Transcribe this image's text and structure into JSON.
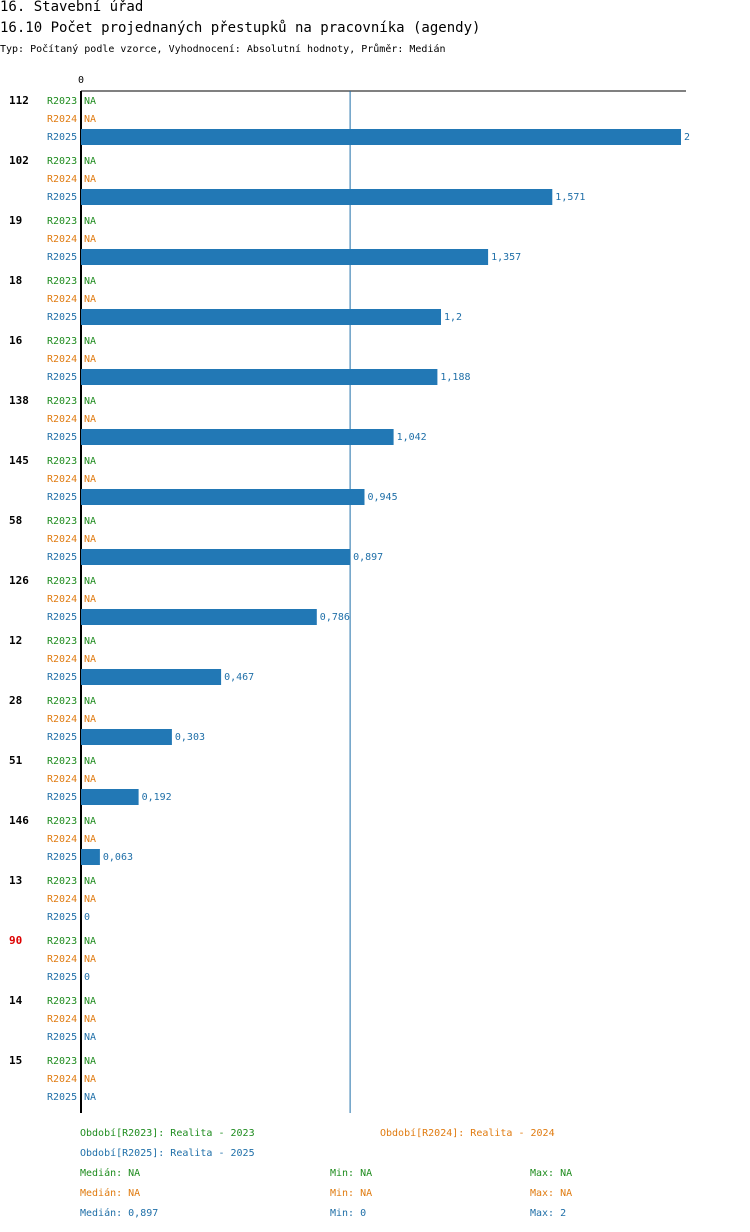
{
  "header": {
    "title": "16. Stavební úřad",
    "subtitle": "16.10 Počet projednaných přestupků na pracovníka (agendy)",
    "info": "Typ: Počítaný podle vzorce, Vyhodnocení: Absolutní hodnoty, Průměr: Medián"
  },
  "colors": {
    "r2023": "#1e8c1e",
    "r2024": "#e07b10",
    "r2025": "#1f6fa8",
    "bar": "#2278b5",
    "highlight": "#dd0000",
    "axis": "#000000"
  },
  "chart_data": {
    "type": "bar",
    "orientation": "horizontal",
    "axis_zero_label": "0",
    "xlim": [
      0,
      2
    ],
    "reference_line": {
      "name": "Medián R2025",
      "value": 0.897
    },
    "period_labels": [
      "R2023",
      "R2024",
      "R2025"
    ],
    "missing_label": "NA",
    "highlight_category": "90",
    "categories": [
      "112",
      "102",
      "19",
      "18",
      "16",
      "138",
      "145",
      "58",
      "126",
      "12",
      "28",
      "51",
      "146",
      "13",
      "90",
      "14",
      "15"
    ],
    "series": [
      {
        "name": "R2023",
        "values": [
          null,
          null,
          null,
          null,
          null,
          null,
          null,
          null,
          null,
          null,
          null,
          null,
          null,
          null,
          null,
          null,
          null
        ]
      },
      {
        "name": "R2024",
        "values": [
          null,
          null,
          null,
          null,
          null,
          null,
          null,
          null,
          null,
          null,
          null,
          null,
          null,
          null,
          null,
          null,
          null
        ]
      },
      {
        "name": "R2025",
        "values": [
          2,
          1.571,
          1.357,
          1.2,
          1.188,
          1.042,
          0.945,
          0.897,
          0.786,
          0.467,
          0.303,
          0.192,
          0.063,
          0,
          0,
          null,
          null
        ]
      }
    ],
    "value_labels": {
      "R2025": [
        "2",
        "1,571",
        "1,357",
        "1,2",
        "1,188",
        "1,042",
        "0,945",
        "0,897",
        "0,786",
        "0,467",
        "0,303",
        "0,192",
        "0,063",
        "0",
        "0",
        "NA",
        "NA"
      ]
    }
  },
  "legend": {
    "period_2023": "Období[R2023]: Realita - 2023",
    "period_2024": "Období[R2024]: Realita - 2024",
    "period_2025": "Období[R2025]: Realita - 2025",
    "stats": [
      {
        "median": "Medián: NA",
        "min": "Min: NA",
        "max": "Max: NA"
      },
      {
        "median": "Medián: NA",
        "min": "Min: NA",
        "max": "Max: NA"
      },
      {
        "median": "Medián: 0,897",
        "min": "Min: 0",
        "max": "Max: 2"
      }
    ]
  }
}
